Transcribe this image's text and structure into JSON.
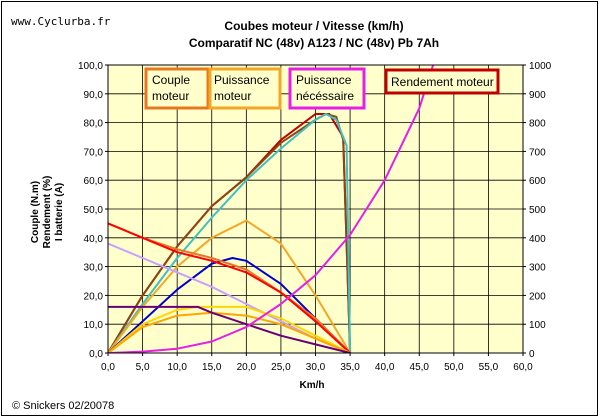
{
  "header": {
    "site": "www.Cyclurba.fr",
    "title_line1": "Coubes moteur / Vitesse (km/h)",
    "title_line2": "Comparatif NC (48v) A123 / NC (48v) Pb 7Ah"
  },
  "footer": {
    "credit": "© Snickers 02/20078"
  },
  "colors": {
    "plot_bg": "#FFFFCC",
    "couple": "#E87722",
    "puissance": "#F5A623",
    "puissance_necessaire": "#E61EE6",
    "rendement": "#C00000"
  },
  "chart_data": {
    "type": "line",
    "xlabel": "Km/h",
    "ylabel_lines": [
      "Couple (N.m)",
      "Rendement (%)",
      "I batterie (A)"
    ],
    "xlim": [
      0,
      60
    ],
    "ylim": [
      0,
      100
    ],
    "y2lim": [
      0,
      1000
    ],
    "x_ticks": [
      "0,0",
      "5,0",
      "10,0",
      "15,0",
      "20,0",
      "25,0",
      "30,0",
      "35,0",
      "40,0",
      "45,0",
      "50,0",
      "55,0",
      "60,0"
    ],
    "y_ticks": [
      "0,0",
      "10,0",
      "20,0",
      "30,0",
      "40,0",
      "50,0",
      "60,0",
      "70,0",
      "80,0",
      "90,0",
      "100,0"
    ],
    "y2_ticks": [
      "0",
      "100",
      "200",
      "300",
      "400",
      "500",
      "600",
      "700",
      "800",
      "900",
      "1000"
    ],
    "grid": true,
    "legend_boxes": [
      {
        "text": [
          "Couple",
          "moteur"
        ],
        "color": "#E87722"
      },
      {
        "text": [
          "Puissance",
          "moteur"
        ],
        "color": "#F5A623"
      },
      {
        "text": [
          "Puissance",
          "nécéssaire"
        ],
        "color": "#E61EE6"
      },
      {
        "text": [
          "Rendement moteur"
        ],
        "color": "#C00000"
      }
    ],
    "series": [
      {
        "color": "#C00000",
        "axis": "left",
        "x": [
          0,
          5,
          10,
          15,
          20,
          25,
          30,
          32,
          34,
          35
        ],
        "y": [
          0,
          20,
          37,
          51,
          61,
          74,
          83,
          83,
          75,
          0
        ]
      },
      {
        "color": "#8B4513",
        "axis": "left",
        "x": [
          0,
          5,
          10,
          15,
          20,
          25,
          30,
          31.5,
          33,
          34,
          35
        ],
        "y": [
          0,
          20,
          37,
          51,
          61,
          73,
          81,
          83,
          82,
          74,
          0
        ]
      },
      {
        "color": "#40C0C0",
        "axis": "left",
        "x": [
          0,
          5,
          10,
          15,
          20,
          25,
          30,
          31.5,
          33,
          34.5,
          35
        ],
        "y": [
          0,
          17,
          33,
          47,
          60,
          71,
          81,
          83,
          81,
          72,
          0
        ]
      },
      {
        "color": "#F5A623",
        "axis": "left",
        "x": [
          0,
          5,
          10,
          15,
          20,
          25,
          30,
          35
        ],
        "y": [
          0,
          16,
          30,
          40,
          46,
          38,
          20,
          0
        ]
      },
      {
        "color": "#0000CC",
        "axis": "left",
        "x": [
          0,
          5,
          10,
          15,
          18,
          20,
          25,
          30,
          35
        ],
        "y": [
          0,
          11,
          22,
          31,
          33,
          32,
          24,
          12,
          0
        ]
      },
      {
        "color": "#E87722",
        "axis": "left",
        "x": [
          0,
          5,
          10,
          15,
          20,
          25,
          30,
          35
        ],
        "y": [
          45,
          40,
          36,
          33,
          29,
          21,
          12,
          0
        ]
      },
      {
        "color": "#FF0000",
        "axis": "left",
        "x": [
          0,
          5,
          10,
          15,
          20,
          25,
          30,
          35
        ],
        "y": [
          45,
          40,
          35,
          32,
          28,
          21,
          11,
          0
        ]
      },
      {
        "color": "#C8A0FF",
        "axis": "left",
        "x": [
          0,
          5,
          10,
          15,
          20,
          25,
          30,
          35
        ],
        "y": [
          38,
          33,
          28,
          23,
          17,
          11,
          5,
          0
        ]
      },
      {
        "color": "#FFD700",
        "axis": "left",
        "x": [
          0,
          5,
          10,
          13,
          15,
          20,
          25,
          30,
          35
        ],
        "y": [
          0,
          10,
          15,
          16,
          16,
          16,
          12,
          6,
          0
        ]
      },
      {
        "color": "#FFA500",
        "axis": "left",
        "x": [
          0,
          5,
          10,
          15,
          20,
          25,
          30,
          35
        ],
        "y": [
          0,
          9,
          13,
          14,
          13,
          10,
          5,
          0
        ]
      },
      {
        "color": "#6A0078",
        "axis": "left",
        "x": [
          0,
          5,
          10,
          13,
          15,
          20,
          25,
          30,
          35
        ],
        "y": [
          16,
          16,
          16,
          16,
          14,
          10,
          6,
          3,
          0
        ]
      },
      {
        "color": "#E61EE6",
        "axis": "right",
        "x": [
          0,
          5,
          10,
          15,
          20,
          25,
          30,
          35,
          40,
          45,
          47
        ],
        "y": [
          0,
          5,
          15,
          40,
          90,
          170,
          270,
          410,
          600,
          850,
          1000
        ]
      }
    ]
  }
}
